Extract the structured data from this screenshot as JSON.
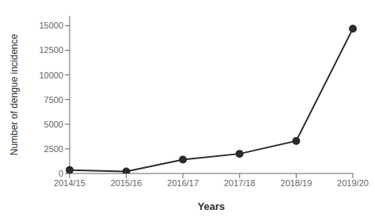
{
  "chart_data": {
    "type": "line",
    "xlabel": "Years",
    "ylabel": "Number of dengue incidence",
    "categories": [
      "2014/15",
      "2015/16",
      "2016/17",
      "2017/18",
      "2018/19",
      "2019/20"
    ],
    "values": [
      350,
      200,
      1400,
      2000,
      3300,
      14700
    ],
    "color": "#2b2b2b",
    "marker": "circle",
    "ylim": [
      0,
      16000
    ],
    "yticks": [
      0,
      2500,
      5000,
      7500,
      10000,
      12500,
      15000
    ],
    "grid": false
  }
}
